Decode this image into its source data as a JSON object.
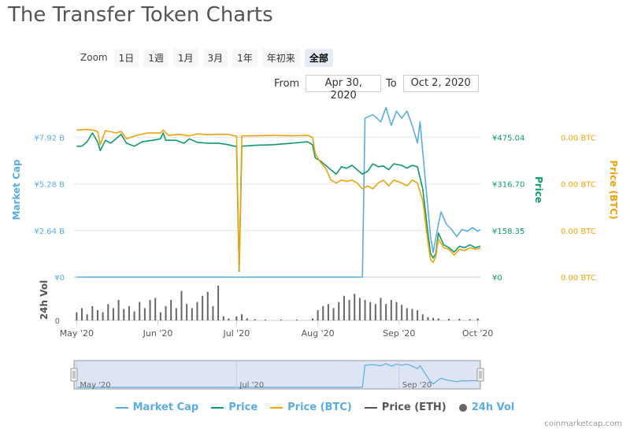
{
  "page": {
    "title": "The Transfer Token Charts"
  },
  "zoom": {
    "label": "Zoom",
    "buttons": [
      "1日",
      "1週",
      "1月",
      "3月",
      "1年",
      "年初来",
      "全部"
    ],
    "active_index": 6
  },
  "range": {
    "from_label": "From",
    "from_value": "Apr 30, 2020",
    "to_label": "To",
    "to_value": "Oct 2, 2020"
  },
  "legend": [
    {
      "label": "Market Cap",
      "color": "#5aade2",
      "kind": "line"
    },
    {
      "label": "Price",
      "color": "#0e9a6c",
      "kind": "line"
    },
    {
      "label": "Price (BTC)",
      "color": "#f0a30a",
      "kind": "line"
    },
    {
      "label": "Price (ETH)",
      "color": "#555555",
      "kind": "line"
    },
    {
      "label": "24h Vol",
      "color": "#666666",
      "kind": "dot"
    }
  ],
  "credit": "coinmarketcap.com",
  "chart_data": {
    "type": "line",
    "title": "The Transfer Token Charts",
    "x_range": [
      "2020-04-30",
      "2020-10-02"
    ],
    "x_ticks": [
      {
        "date": "2020-05-01",
        "label": "May '20"
      },
      {
        "date": "2020-06-01",
        "label": "Jun '20"
      },
      {
        "date": "2020-07-01",
        "label": "Jul '20"
      },
      {
        "date": "2020-08-01",
        "label": "Aug '20"
      },
      {
        "date": "2020-09-01",
        "label": "Sep '20"
      },
      {
        "date": "2020-10-01",
        "label": "Oct '20"
      }
    ],
    "axes": {
      "market_cap": {
        "title": "Market Cap",
        "color": "#5aade2",
        "ticks": [
          "¥0",
          "¥2.64 B",
          "¥5.28 B",
          "¥7.92 B"
        ],
        "tick_values": [
          0,
          2.64,
          5.28,
          7.92
        ],
        "unit": "B JPY"
      },
      "price": {
        "title": "Price",
        "color": "#0e9a6c",
        "ticks": [
          "¥0",
          "¥158.35",
          "¥316.70",
          "¥475.04"
        ],
        "tick_values": [
          0,
          158.35,
          316.7,
          475.04
        ]
      },
      "price_btc": {
        "title": "Price (BTC)",
        "color": "#f0a30a",
        "ticks": [
          "0.00 BTC",
          "0.00 BTC",
          "0.00 BTC",
          "0.00 BTC"
        ]
      },
      "volume": {
        "title": "24h Vol",
        "ticks": [
          "0"
        ]
      }
    },
    "series": [
      {
        "name": "Market Cap",
        "axis": "market_cap",
        "points": [
          [
            "2020-05-01",
            0
          ],
          [
            "2020-08-18",
            0
          ],
          [
            "2020-08-19",
            9.0
          ],
          [
            "2020-08-22",
            9.2
          ],
          [
            "2020-08-25",
            8.8
          ],
          [
            "2020-08-27",
            9.6
          ],
          [
            "2020-08-29",
            8.6
          ],
          [
            "2020-08-31",
            9.4
          ],
          [
            "2020-09-02",
            9.0
          ],
          [
            "2020-09-04",
            9.4
          ],
          [
            "2020-09-06",
            8.6
          ],
          [
            "2020-09-08",
            7.6
          ],
          [
            "2020-09-09",
            8.8
          ],
          [
            "2020-09-11",
            5.5
          ],
          [
            "2020-09-13",
            2.3
          ],
          [
            "2020-09-14",
            1.4
          ],
          [
            "2020-09-16",
            3.0
          ],
          [
            "2020-09-17",
            3.7
          ],
          [
            "2020-09-19",
            3.0
          ],
          [
            "2020-09-21",
            2.7
          ],
          [
            "2020-09-23",
            2.3
          ],
          [
            "2020-09-25",
            2.7
          ],
          [
            "2020-09-27",
            2.6
          ],
          [
            "2020-09-29",
            2.8
          ],
          [
            "2020-10-01",
            2.6
          ],
          [
            "2020-10-02",
            2.7
          ]
        ]
      },
      {
        "name": "Price",
        "axis": "price",
        "points": [
          [
            "2020-05-01",
            445
          ],
          [
            "2020-05-03",
            445
          ],
          [
            "2020-05-05",
            460
          ],
          [
            "2020-05-07",
            490
          ],
          [
            "2020-05-09",
            460
          ],
          [
            "2020-05-10",
            430
          ],
          [
            "2020-05-12",
            465
          ],
          [
            "2020-05-14",
            455
          ],
          [
            "2020-05-16",
            470
          ],
          [
            "2020-05-18",
            485
          ],
          [
            "2020-05-20",
            455
          ],
          [
            "2020-05-23",
            445
          ],
          [
            "2020-05-26",
            460
          ],
          [
            "2020-05-30",
            465
          ],
          [
            "2020-06-02",
            470
          ],
          [
            "2020-06-03",
            490
          ],
          [
            "2020-06-04",
            465
          ],
          [
            "2020-06-08",
            465
          ],
          [
            "2020-06-11",
            455
          ],
          [
            "2020-06-13",
            470
          ],
          [
            "2020-06-16",
            458
          ],
          [
            "2020-06-20",
            455
          ],
          [
            "2020-06-24",
            455
          ],
          [
            "2020-06-28",
            450
          ],
          [
            "2020-06-30",
            445
          ],
          [
            "2020-07-01",
            445
          ],
          [
            "2020-07-02",
            20
          ],
          [
            "2020-07-03",
            445
          ],
          [
            "2020-07-08",
            448
          ],
          [
            "2020-07-15",
            450
          ],
          [
            "2020-07-22",
            455
          ],
          [
            "2020-07-28",
            460
          ],
          [
            "2020-07-30",
            450
          ],
          [
            "2020-07-31",
            405
          ],
          [
            "2020-08-02",
            395
          ],
          [
            "2020-08-04",
            380
          ],
          [
            "2020-08-06",
            365
          ],
          [
            "2020-08-08",
            350
          ],
          [
            "2020-08-10",
            375
          ],
          [
            "2020-08-12",
            370
          ],
          [
            "2020-08-14",
            380
          ],
          [
            "2020-08-16",
            365
          ],
          [
            "2020-08-18",
            350
          ],
          [
            "2020-08-20",
            360
          ],
          [
            "2020-08-22",
            385
          ],
          [
            "2020-08-24",
            375
          ],
          [
            "2020-08-26",
            378
          ],
          [
            "2020-08-28",
            365
          ],
          [
            "2020-08-30",
            385
          ],
          [
            "2020-09-02",
            380
          ],
          [
            "2020-09-04",
            370
          ],
          [
            "2020-09-06",
            380
          ],
          [
            "2020-09-08",
            375
          ],
          [
            "2020-09-10",
            300
          ],
          [
            "2020-09-12",
            150
          ],
          [
            "2020-09-13",
            80
          ],
          [
            "2020-09-14",
            65
          ],
          [
            "2020-09-15",
            80
          ],
          [
            "2020-09-16",
            150
          ],
          [
            "2020-09-18",
            110
          ],
          [
            "2020-09-20",
            100
          ],
          [
            "2020-09-22",
            85
          ],
          [
            "2020-09-24",
            105
          ],
          [
            "2020-09-26",
            100
          ],
          [
            "2020-09-28",
            110
          ],
          [
            "2020-09-30",
            100
          ],
          [
            "2020-10-02",
            105
          ]
        ]
      },
      {
        "name": "Price (BTC)",
        "axis": "price",
        "points": [
          [
            "2020-05-01",
            500
          ],
          [
            "2020-05-05",
            502
          ],
          [
            "2020-05-07",
            500
          ],
          [
            "2020-05-09",
            495
          ],
          [
            "2020-05-10",
            450
          ],
          [
            "2020-05-12",
            498
          ],
          [
            "2020-05-16",
            490
          ],
          [
            "2020-05-18",
            495
          ],
          [
            "2020-05-20",
            470
          ],
          [
            "2020-05-24",
            482
          ],
          [
            "2020-05-28",
            490
          ],
          [
            "2020-06-02",
            490
          ],
          [
            "2020-06-03",
            500
          ],
          [
            "2020-06-05",
            482
          ],
          [
            "2020-06-09",
            485
          ],
          [
            "2020-06-13",
            480
          ],
          [
            "2020-06-16",
            487
          ],
          [
            "2020-06-20",
            484
          ],
          [
            "2020-06-24",
            485
          ],
          [
            "2020-06-28",
            485
          ],
          [
            "2020-06-30",
            480
          ],
          [
            "2020-07-01",
            480
          ],
          [
            "2020-07-02",
            25
          ],
          [
            "2020-07-03",
            480
          ],
          [
            "2020-07-08",
            480
          ],
          [
            "2020-07-15",
            482
          ],
          [
            "2020-07-22",
            480
          ],
          [
            "2020-07-28",
            482
          ],
          [
            "2020-07-30",
            475
          ],
          [
            "2020-07-31",
            420
          ],
          [
            "2020-08-02",
            390
          ],
          [
            "2020-08-04",
            370
          ],
          [
            "2020-08-06",
            330
          ],
          [
            "2020-08-08",
            320
          ],
          [
            "2020-08-10",
            330
          ],
          [
            "2020-08-12",
            325
          ],
          [
            "2020-08-14",
            330
          ],
          [
            "2020-08-16",
            320
          ],
          [
            "2020-08-18",
            300
          ],
          [
            "2020-08-20",
            310
          ],
          [
            "2020-08-22",
            300
          ],
          [
            "2020-08-24",
            320
          ],
          [
            "2020-08-26",
            330
          ],
          [
            "2020-08-28",
            310
          ],
          [
            "2020-08-30",
            330
          ],
          [
            "2020-09-02",
            320
          ],
          [
            "2020-09-04",
            310
          ],
          [
            "2020-09-06",
            330
          ],
          [
            "2020-09-08",
            320
          ],
          [
            "2020-09-10",
            260
          ],
          [
            "2020-09-12",
            120
          ],
          [
            "2020-09-13",
            60
          ],
          [
            "2020-09-14",
            50
          ],
          [
            "2020-09-15",
            70
          ],
          [
            "2020-09-16",
            130
          ],
          [
            "2020-09-18",
            100
          ],
          [
            "2020-09-20",
            95
          ],
          [
            "2020-09-22",
            75
          ],
          [
            "2020-09-24",
            95
          ],
          [
            "2020-09-26",
            90
          ],
          [
            "2020-09-28",
            100
          ],
          [
            "2020-09-30",
            95
          ],
          [
            "2020-10-02",
            98
          ]
        ]
      }
    ],
    "volume": {
      "unit": "relative",
      "points": [
        [
          "2020-05-01",
          0.2
        ],
        [
          "2020-05-03",
          0.3
        ],
        [
          "2020-05-05",
          0.15
        ],
        [
          "2020-05-07",
          0.35
        ],
        [
          "2020-05-09",
          0.25
        ],
        [
          "2020-05-11",
          0.2
        ],
        [
          "2020-05-13",
          0.4
        ],
        [
          "2020-05-15",
          0.3
        ],
        [
          "2020-05-17",
          0.5
        ],
        [
          "2020-05-19",
          0.28
        ],
        [
          "2020-05-21",
          0.35
        ],
        [
          "2020-05-23",
          0.22
        ],
        [
          "2020-05-25",
          0.45
        ],
        [
          "2020-05-27",
          0.3
        ],
        [
          "2020-05-29",
          0.5
        ],
        [
          "2020-05-31",
          0.55
        ],
        [
          "2020-06-02",
          0.2
        ],
        [
          "2020-06-04",
          0.35
        ],
        [
          "2020-06-06",
          0.5
        ],
        [
          "2020-06-08",
          0.3
        ],
        [
          "2020-06-10",
          0.72
        ],
        [
          "2020-06-12",
          0.4
        ],
        [
          "2020-06-14",
          0.3
        ],
        [
          "2020-06-16",
          0.45
        ],
        [
          "2020-06-18",
          0.6
        ],
        [
          "2020-06-20",
          0.7
        ],
        [
          "2020-06-22",
          0.35
        ],
        [
          "2020-06-24",
          0.85
        ],
        [
          "2020-06-26",
          0.1
        ],
        [
          "2020-06-28",
          0.05
        ],
        [
          "2020-07-01",
          0.1
        ],
        [
          "2020-07-03",
          0.15
        ],
        [
          "2020-07-05",
          0.05
        ],
        [
          "2020-07-08",
          0.03
        ],
        [
          "2020-07-12",
          0.02
        ],
        [
          "2020-07-18",
          0.02
        ],
        [
          "2020-07-24",
          0.02
        ],
        [
          "2020-07-30",
          0.05
        ],
        [
          "2020-08-01",
          0.25
        ],
        [
          "2020-08-03",
          0.35
        ],
        [
          "2020-08-05",
          0.4
        ],
        [
          "2020-08-07",
          0.3
        ],
        [
          "2020-08-09",
          0.45
        ],
        [
          "2020-08-11",
          0.6
        ],
        [
          "2020-08-13",
          0.5
        ],
        [
          "2020-08-15",
          0.65
        ],
        [
          "2020-08-17",
          0.55
        ],
        [
          "2020-08-19",
          0.5
        ],
        [
          "2020-08-21",
          0.45
        ],
        [
          "2020-08-23",
          0.4
        ],
        [
          "2020-08-25",
          0.55
        ],
        [
          "2020-08-27",
          0.4
        ],
        [
          "2020-08-29",
          0.5
        ],
        [
          "2020-08-31",
          0.45
        ],
        [
          "2020-09-02",
          0.38
        ],
        [
          "2020-09-04",
          0.3
        ],
        [
          "2020-09-06",
          0.28
        ],
        [
          "2020-09-08",
          0.25
        ],
        [
          "2020-09-10",
          0.15
        ],
        [
          "2020-09-12",
          0.08
        ],
        [
          "2020-09-14",
          0.06
        ],
        [
          "2020-09-16",
          0.05
        ],
        [
          "2020-09-20",
          0.04
        ],
        [
          "2020-09-24",
          0.04
        ],
        [
          "2020-09-28",
          0.03
        ],
        [
          "2020-10-01",
          0.05
        ]
      ]
    }
  },
  "navigator": {
    "labels": [
      "May '20",
      "Jul '20",
      "Sep '20"
    ]
  }
}
